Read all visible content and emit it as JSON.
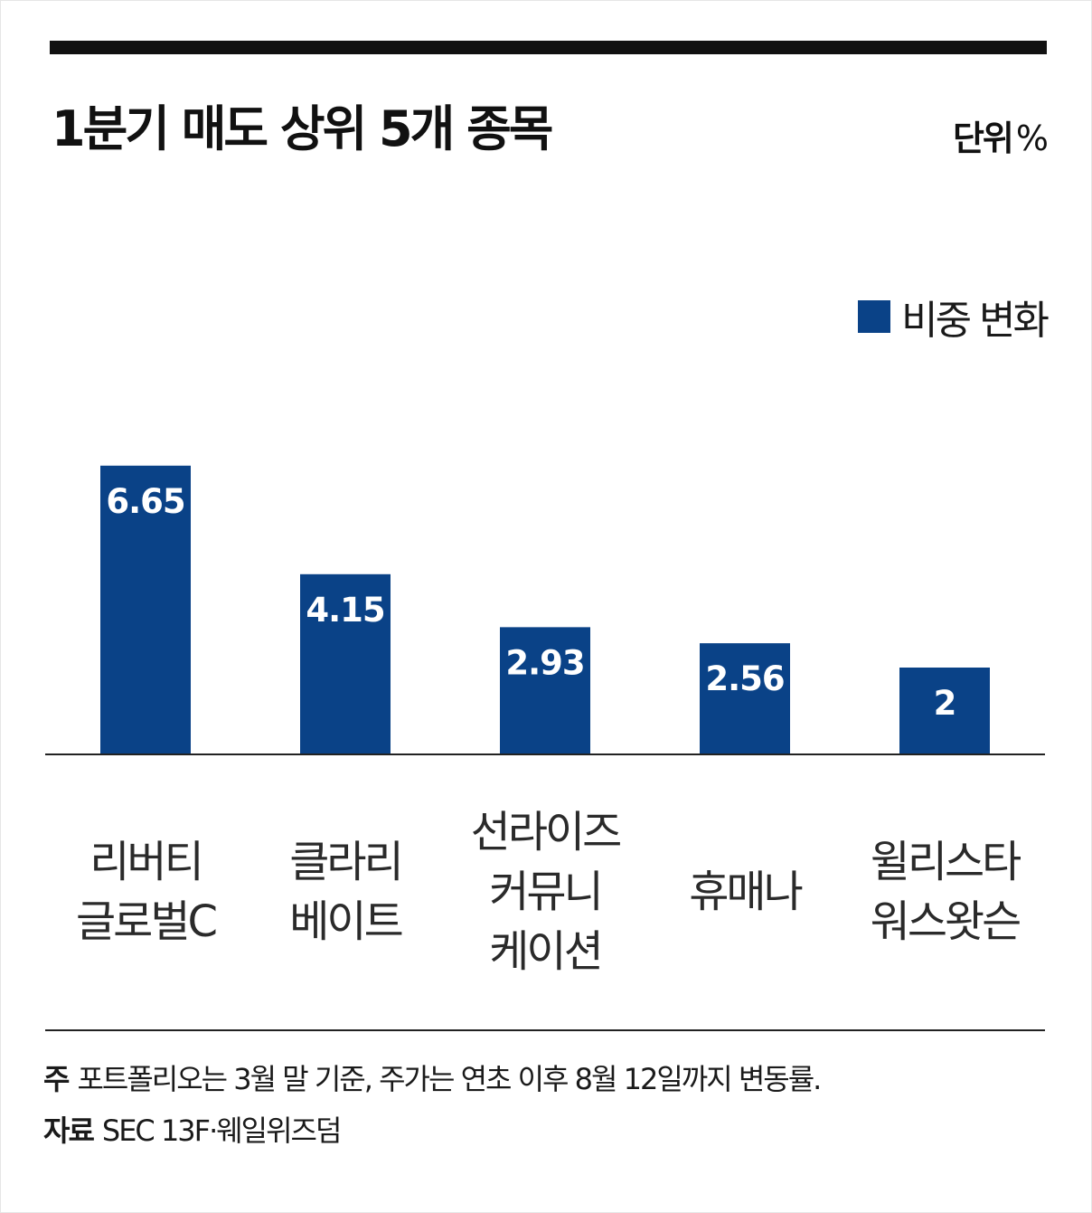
{
  "title": "1분기 매도 상위 5개 종목",
  "unit": {
    "label": "단위",
    "symbol": "%"
  },
  "legend": {
    "label": "비중 변화",
    "color": "#0a4287"
  },
  "chart_data": {
    "type": "bar",
    "categories": [
      [
        "리버티",
        "글로벌C"
      ],
      [
        "클라리",
        "베이트"
      ],
      [
        "선라이즈",
        "커뮤니",
        "케이션"
      ],
      [
        "휴매나"
      ],
      [
        "윌리스타",
        "워스왓슨"
      ]
    ],
    "series": [
      {
        "name": "비중 변화",
        "values": [
          6.65,
          4.15,
          2.93,
          2.56,
          2
        ],
        "labels": [
          "6.65",
          "4.15",
          "2.93",
          "2.56",
          "2"
        ],
        "color": "#0a4287"
      }
    ],
    "grid": false,
    "legend_position": "top-right"
  },
  "footnote": {
    "note_label": "주",
    "note_text": "포트폴리오는 3월 말 기준, 주가는 연초 이후 8월 12일까지 변동률.",
    "source_label": "자료",
    "source_text": "SEC 13F·웨일위즈덤"
  }
}
